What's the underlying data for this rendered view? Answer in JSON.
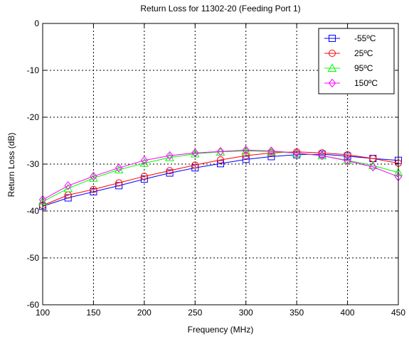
{
  "chart_data": {
    "type": "line",
    "title": "Return Loss for 11302-20 (Feeding Port 1)",
    "xlabel": "Frequency (MHz)",
    "ylabel": "Return Loss (dB)",
    "xlim": [
      100,
      450
    ],
    "ylim": [
      -60,
      0
    ],
    "xticks": [
      100,
      150,
      200,
      250,
      300,
      350,
      400,
      450
    ],
    "yticks": [
      0,
      -10,
      -20,
      -30,
      -40,
      -50,
      -60
    ],
    "grid": true,
    "legend_position": "top-right",
    "x": [
      100,
      125,
      150,
      175,
      200,
      225,
      250,
      275,
      300,
      325,
      350,
      375,
      400,
      425,
      450
    ],
    "series": [
      {
        "name": "-55ºC",
        "marker": "square",
        "color": "#0000ff",
        "values": [
          -39.0,
          -37.2,
          -35.9,
          -34.6,
          -33.2,
          -31.9,
          -30.8,
          -29.9,
          -29.0,
          -28.4,
          -28.0,
          -27.9,
          -28.3,
          -28.8,
          -29.2
        ]
      },
      {
        "name": "25ºC",
        "marker": "circle",
        "color": "#ff0000",
        "values": [
          -38.8,
          -36.6,
          -35.4,
          -34.0,
          -32.6,
          -31.4,
          -30.2,
          -29.1,
          -28.2,
          -27.6,
          -27.4,
          -27.6,
          -28.0,
          -28.8,
          -29.8
        ]
      },
      {
        "name": "95ºC",
        "marker": "triangle",
        "color": "#00ff00",
        "values": [
          -38.0,
          -35.2,
          -33.0,
          -31.2,
          -29.8,
          -28.6,
          -27.8,
          -27.4,
          -27.2,
          -27.3,
          -27.7,
          -28.2,
          -29.2,
          -30.3,
          -31.8
        ]
      },
      {
        "name": "150ºC",
        "marker": "diamond",
        "color": "#ff00ff",
        "values": [
          -37.6,
          -34.6,
          -32.6,
          -30.8,
          -29.2,
          -28.2,
          -27.6,
          -27.3,
          -27.0,
          -27.2,
          -27.6,
          -28.2,
          -29.3,
          -30.6,
          -32.7
        ]
      }
    ]
  }
}
